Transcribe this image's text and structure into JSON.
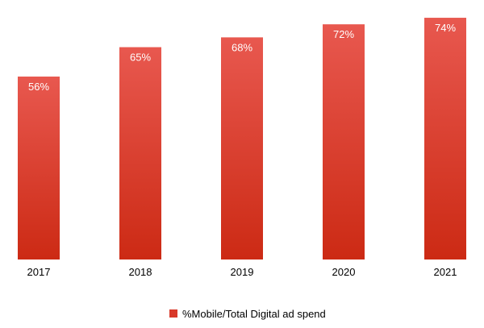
{
  "chart_data": {
    "type": "bar",
    "categories": [
      "2017",
      "2018",
      "2019",
      "2020",
      "2021"
    ],
    "series": [
      {
        "name": "%Mobile/Total Digital ad spend",
        "values": [
          56,
          65,
          68,
          72,
          74
        ],
        "labels": [
          "56%",
          "65%",
          "68%",
          "72%",
          "74%"
        ]
      }
    ],
    "ylim": [
      0,
      75
    ],
    "grid": false,
    "legend_position": "bottom-center",
    "colors": {
      "bar_top": "#e8584f",
      "bar_bottom": "#cc2a14",
      "legend_swatch": "#d8392a"
    }
  }
}
